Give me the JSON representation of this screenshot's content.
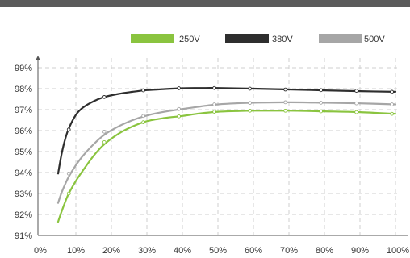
{
  "chart_data": {
    "type": "line",
    "title": "",
    "xlabel": "",
    "ylabel": "",
    "x_ticks": [
      "0%",
      "10%",
      "20%",
      "30%",
      "40%",
      "50%",
      "60%",
      "70%",
      "80%",
      "90%",
      "100%"
    ],
    "y_ticks": [
      "91%",
      "92%",
      "93%",
      "94%",
      "95%",
      "96%",
      "97%",
      "98%",
      "99%"
    ],
    "xlim": [
      0,
      100
    ],
    "ylim": [
      91,
      99.3
    ],
    "grid": true,
    "legend_position": "top-right",
    "series": [
      {
        "name": "250V",
        "color": "#8ac43f",
        "curve": [
          [
            5,
            91.65
          ],
          [
            6,
            92.15
          ],
          [
            7,
            92.6
          ],
          [
            8,
            93.0
          ],
          [
            10,
            93.6
          ],
          [
            12,
            94.1
          ],
          [
            15,
            94.8
          ],
          [
            18,
            95.35
          ],
          [
            22,
            95.85
          ],
          [
            26,
            96.2
          ],
          [
            30,
            96.45
          ],
          [
            35,
            96.6
          ],
          [
            40,
            96.7
          ],
          [
            45,
            96.82
          ],
          [
            50,
            96.9
          ],
          [
            55,
            96.93
          ],
          [
            60,
            96.95
          ],
          [
            70,
            96.95
          ],
          [
            80,
            96.92
          ],
          [
            90,
            96.88
          ],
          [
            100,
            96.8
          ]
        ],
        "markers": [
          [
            8,
            93.0
          ],
          [
            18,
            95.45
          ],
          [
            29,
            96.4
          ],
          [
            39,
            96.68
          ],
          [
            49,
            96.9
          ],
          [
            59,
            96.95
          ],
          [
            69,
            96.95
          ],
          [
            79,
            96.92
          ],
          [
            89,
            96.88
          ],
          [
            99,
            96.8
          ]
        ]
      },
      {
        "name": "380V",
        "color": "#2e2e2e",
        "curve": [
          [
            5,
            93.95
          ],
          [
            6,
            94.9
          ],
          [
            7,
            95.6
          ],
          [
            8,
            96.1
          ],
          [
            10,
            96.75
          ],
          [
            12,
            97.1
          ],
          [
            15,
            97.4
          ],
          [
            18,
            97.6
          ],
          [
            22,
            97.75
          ],
          [
            26,
            97.85
          ],
          [
            30,
            97.93
          ],
          [
            35,
            97.98
          ],
          [
            40,
            98.02
          ],
          [
            45,
            98.03
          ],
          [
            50,
            98.03
          ],
          [
            60,
            98.0
          ],
          [
            70,
            97.96
          ],
          [
            80,
            97.92
          ],
          [
            90,
            97.88
          ],
          [
            100,
            97.85
          ]
        ],
        "markers": [
          [
            8,
            96.05
          ],
          [
            18,
            97.6
          ],
          [
            29,
            97.92
          ],
          [
            39,
            98.02
          ],
          [
            49,
            98.03
          ],
          [
            59,
            98.0
          ],
          [
            69,
            97.96
          ],
          [
            79,
            97.93
          ],
          [
            89,
            97.9
          ],
          [
            99,
            97.85
          ]
        ]
      },
      {
        "name": "500V",
        "color": "#a6a6a6",
        "curve": [
          [
            5,
            92.55
          ],
          [
            6,
            93.05
          ],
          [
            7,
            93.45
          ],
          [
            8,
            93.8
          ],
          [
            10,
            94.35
          ],
          [
            12,
            94.8
          ],
          [
            15,
            95.35
          ],
          [
            18,
            95.8
          ],
          [
            22,
            96.2
          ],
          [
            26,
            96.5
          ],
          [
            30,
            96.72
          ],
          [
            35,
            96.9
          ],
          [
            40,
            97.03
          ],
          [
            45,
            97.15
          ],
          [
            50,
            97.25
          ],
          [
            55,
            97.3
          ],
          [
            60,
            97.33
          ],
          [
            70,
            97.35
          ],
          [
            80,
            97.33
          ],
          [
            90,
            97.3
          ],
          [
            100,
            97.25
          ]
        ],
        "markers": [
          [
            8,
            93.95
          ],
          [
            18,
            95.95
          ],
          [
            29,
            96.7
          ],
          [
            39,
            97.03
          ],
          [
            49,
            97.25
          ],
          [
            59,
            97.32
          ],
          [
            69,
            97.35
          ],
          [
            79,
            97.33
          ],
          [
            89,
            97.3
          ],
          [
            99,
            97.25
          ]
        ]
      }
    ]
  }
}
